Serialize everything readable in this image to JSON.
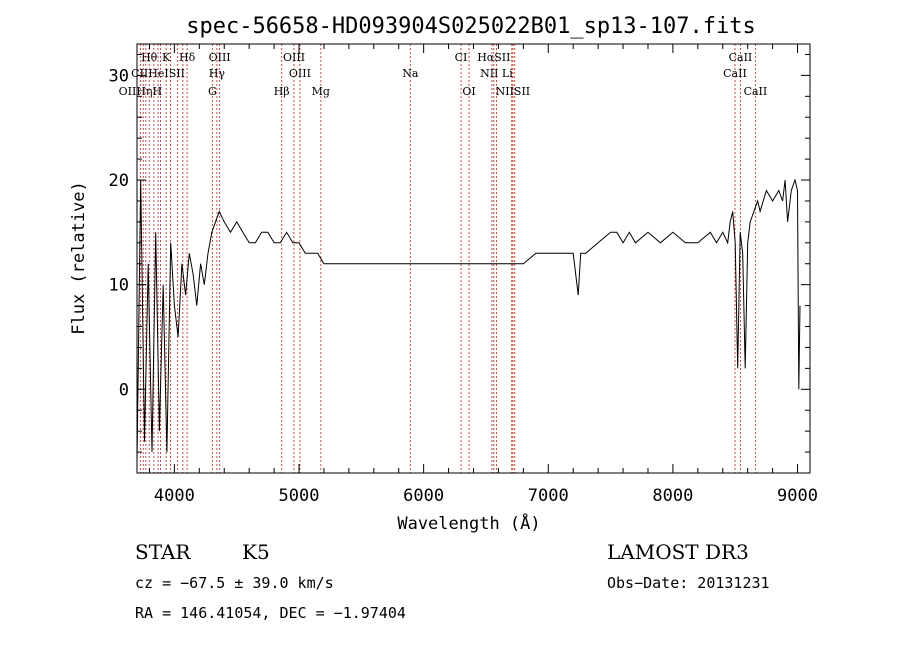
{
  "chart_data": {
    "type": "line",
    "title": "spec-56658-HD093904S025022B01_sp13-107.fits",
    "xlabel": "Wavelength (Å)",
    "ylabel": "Flux (relative)",
    "xlim": [
      3700,
      9100
    ],
    "ylim": [
      -8,
      33
    ],
    "xticks": [
      4000,
      5000,
      6000,
      7000,
      8000,
      9000
    ],
    "yticks": [
      0,
      10,
      20,
      30
    ],
    "grid": false,
    "series": [
      {
        "x": [
          3700,
          3730,
          3760,
          3790,
          3820,
          3850,
          3880,
          3910,
          3940,
          3970,
          4000,
          4030,
          4060,
          4090,
          4120,
          4150,
          4180,
          4210,
          4240,
          4270,
          4300,
          4330,
          4360,
          4400,
          4450,
          4500,
          4550,
          4600,
          4650,
          4700,
          4750,
          4800,
          4850,
          4900,
          4950,
          5000,
          5050,
          5100,
          5150,
          5200,
          5300,
          5400,
          5500,
          5600,
          5700,
          5800,
          5900,
          6000,
          6100,
          6200,
          6300,
          6400,
          6500,
          6550,
          6600,
          6650,
          6700,
          6750,
          6800,
          6900,
          7000,
          7100,
          7200,
          7240,
          7260,
          7300,
          7400,
          7500,
          7550,
          7600,
          7650,
          7700,
          7800,
          7900,
          8000,
          8100,
          8200,
          8300,
          8350,
          8400,
          8440,
          8460,
          8480,
          8500,
          8520,
          8540,
          8560,
          8580,
          8600,
          8620,
          8650,
          8680,
          8700,
          8750,
          8800,
          8850,
          8880,
          8900,
          8920,
          8950,
          8980,
          9000,
          9010,
          9020
        ],
        "y": [
          -7,
          20,
          -5,
          12,
          -6,
          15,
          -4,
          10,
          -6,
          14,
          8,
          5,
          12,
          9,
          13,
          11,
          8,
          12,
          10,
          13,
          15,
          16,
          17,
          16,
          15,
          16,
          15,
          14,
          14,
          15,
          15,
          14,
          14,
          15,
          14,
          14,
          13,
          13,
          13,
          12,
          12,
          12,
          12,
          12,
          12,
          12,
          12,
          12,
          12,
          12,
          12,
          12,
          12,
          12,
          12,
          12,
          12,
          12,
          12,
          13,
          13,
          13,
          13,
          9,
          13,
          13,
          14,
          15,
          15,
          14,
          15,
          14,
          15,
          14,
          15,
          14,
          14,
          15,
          14,
          15,
          14,
          16,
          17,
          14,
          2,
          15,
          13,
          2,
          14,
          16,
          17,
          18,
          17,
          19,
          18,
          19,
          18,
          20,
          16,
          19,
          20,
          19,
          0,
          8
        ]
      }
    ],
    "lines_top": [
      {
        "label": "Hθ",
        "x": 3798
      },
      {
        "label": "K",
        "x": 3934
      },
      {
        "label": "Hδ",
        "x": 4102
      },
      {
        "label": "OIII",
        "x": 4363
      },
      {
        "label": "OIII",
        "x": 4960
      },
      {
        "label": "CI",
        "x": 6300
      },
      {
        "label": "HαSII",
        "x": 6563
      }
    ],
    "lines_mid": [
      {
        "label": "CIIHeISII",
        "x": 3869
      },
      {
        "label": "Hγ",
        "x": 4341
      },
      {
        "label": "OIII",
        "x": 5007
      },
      {
        "label": "Na",
        "x": 5893
      },
      {
        "label": "NII Li",
        "x": 6584
      }
    ],
    "lines_low": [
      {
        "label": "OIIHηH",
        "x": 3727
      },
      {
        "label": "G",
        "x": 4305
      },
      {
        "label": "Hβ",
        "x": 4861
      },
      {
        "label": "Mg",
        "x": 5175
      },
      {
        "label": "OI",
        "x": 6364
      },
      {
        "label": "NIISII",
        "x": 6716
      }
    ],
    "lines_ca": [
      {
        "label": "CaII",
        "x": 8542,
        "row": 0
      },
      {
        "label": "CaII",
        "x": 8498,
        "row": 1
      },
      {
        "label": "CaII",
        "x": 8662,
        "row": 2
      }
    ],
    "vlines": [
      3727,
      3750,
      3771,
      3798,
      3835,
      3869,
      3889,
      3934,
      3969,
      4026,
      4068,
      4102,
      4305,
      4341,
      4363,
      4861,
      4959,
      5007,
      5175,
      5893,
      6300,
      6364,
      6548,
      6563,
      6584,
      6707,
      6716,
      6731,
      8498,
      8542,
      8662
    ]
  },
  "info": {
    "class": "STAR",
    "subclass": "K5",
    "survey": "LAMOST DR3",
    "cz": "cz = −67.5 ± 39.0 km/s",
    "obsdate": "Obs−Date: 20131231",
    "radec": "RA = 146.41054, DEC =  −1.97404"
  },
  "colors": {
    "axis": "#000000",
    "spectrum": "#000000",
    "linemark": "#c0392b"
  }
}
